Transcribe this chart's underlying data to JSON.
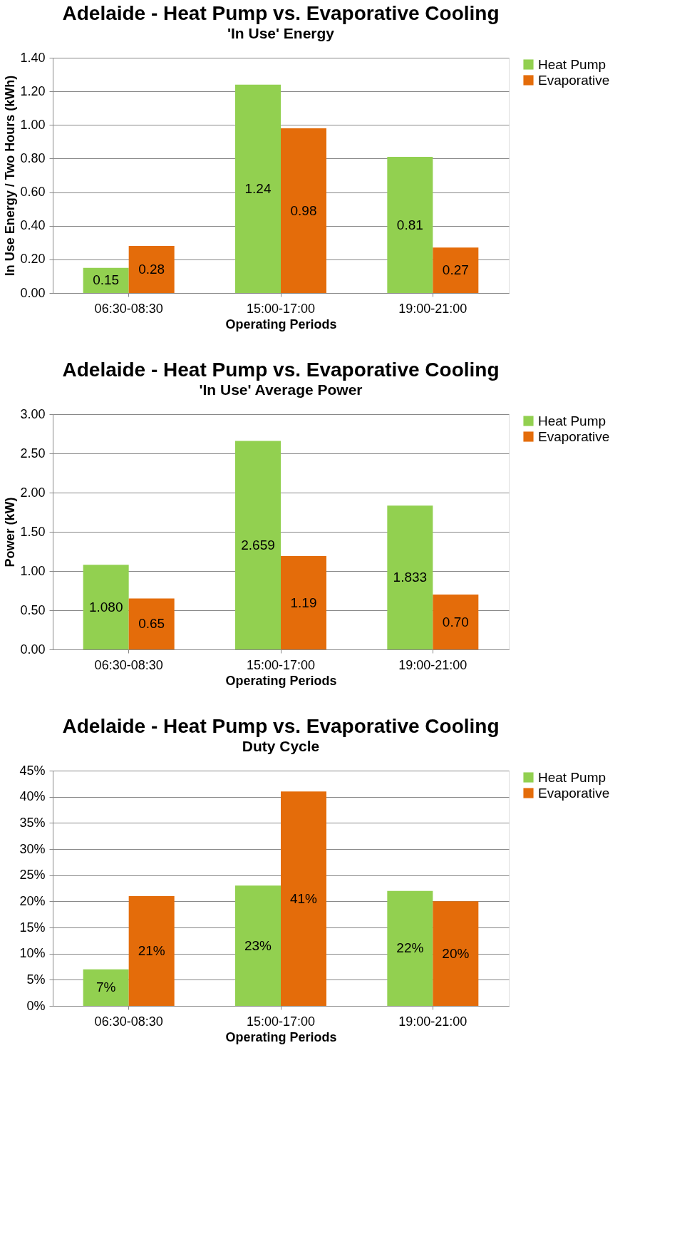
{
  "chart_data": [
    {
      "type": "bar",
      "title": "Adelaide - Heat Pump vs. Evaporative Cooling",
      "subtitle": "'In Use' Energy",
      "xlabel": "Operating Periods",
      "ylabel": "In Use Energy / Two Hours (kWh)",
      "categories": [
        "06:30-08:30",
        "15:00-17:00",
        "19:00-21:00"
      ],
      "series": [
        {
          "name": "Heat Pump",
          "color": "#92d050",
          "values": [
            0.15,
            1.24,
            0.81
          ],
          "value_labels": [
            "0.15",
            "1.24",
            "0.81"
          ]
        },
        {
          "name": "Evaporative",
          "color": "#e46c0a",
          "values": [
            0.28,
            0.98,
            0.27
          ],
          "value_labels": [
            "0.28",
            "0.98",
            "0.27"
          ]
        }
      ],
      "ylim": [
        0,
        1.4
      ],
      "yticks": [
        {
          "value": 0,
          "label": "0.00"
        },
        {
          "value": 0.2,
          "label": "0.20"
        },
        {
          "value": 0.4,
          "label": "0.40"
        },
        {
          "value": 0.6,
          "label": "0.60"
        },
        {
          "value": 0.8,
          "label": "0.80"
        },
        {
          "value": 1.0,
          "label": "1.00"
        },
        {
          "value": 1.2,
          "label": "1.20"
        },
        {
          "value": 1.4,
          "label": "1.40"
        }
      ],
      "grid": "y",
      "legend": "right"
    },
    {
      "type": "bar",
      "title": "Adelaide - Heat Pump vs. Evaporative Cooling",
      "subtitle": "'In Use' Average Power",
      "xlabel": "Operating Periods",
      "ylabel": "Power (kW)",
      "categories": [
        "06:30-08:30",
        "15:00-17:00",
        "19:00-21:00"
      ],
      "series": [
        {
          "name": "Heat Pump",
          "color": "#92d050",
          "values": [
            1.08,
            2.659,
            1.833
          ],
          "value_labels": [
            "1.080",
            "2.659",
            "1.833"
          ]
        },
        {
          "name": "Evaporative",
          "color": "#e46c0a",
          "values": [
            0.65,
            1.19,
            0.7
          ],
          "value_labels": [
            "0.65",
            "1.19",
            "0.70"
          ]
        }
      ],
      "ylim": [
        0,
        3
      ],
      "yticks": [
        {
          "value": 0,
          "label": "0.00"
        },
        {
          "value": 0.5,
          "label": "0.50"
        },
        {
          "value": 1.0,
          "label": "1.00"
        },
        {
          "value": 1.5,
          "label": "1.50"
        },
        {
          "value": 2.0,
          "label": "2.00"
        },
        {
          "value": 2.5,
          "label": "2.50"
        },
        {
          "value": 3.0,
          "label": "3.00"
        }
      ],
      "grid": "y",
      "legend": "right"
    },
    {
      "type": "bar",
      "title": "Adelaide - Heat Pump vs. Evaporative Cooling",
      "subtitle": "Duty Cycle",
      "xlabel": "Operating Periods",
      "categories": [
        "06:30-08:30",
        "15:00-17:00",
        "19:00-21:00"
      ],
      "series": [
        {
          "name": "Heat Pump",
          "color": "#92d050",
          "values": [
            7,
            23,
            22
          ],
          "value_labels": [
            "7%",
            "23%",
            "22%"
          ]
        },
        {
          "name": "Evaporative",
          "color": "#e46c0a",
          "values": [
            21,
            41,
            20
          ],
          "value_labels": [
            "21%",
            "41%",
            "20%"
          ]
        }
      ],
      "ylim": [
        0,
        45
      ],
      "yticks": [
        {
          "value": 0,
          "label": "0%"
        },
        {
          "value": 5,
          "label": "5%"
        },
        {
          "value": 10,
          "label": "10%"
        },
        {
          "value": 15,
          "label": "15%"
        },
        {
          "value": 20,
          "label": "20%"
        },
        {
          "value": 25,
          "label": "25%"
        },
        {
          "value": 30,
          "label": "30%"
        },
        {
          "value": 35,
          "label": "35%"
        },
        {
          "value": 40,
          "label": "40%"
        },
        {
          "value": 45,
          "label": "45%"
        }
      ],
      "grid": "y",
      "legend": "right"
    }
  ]
}
